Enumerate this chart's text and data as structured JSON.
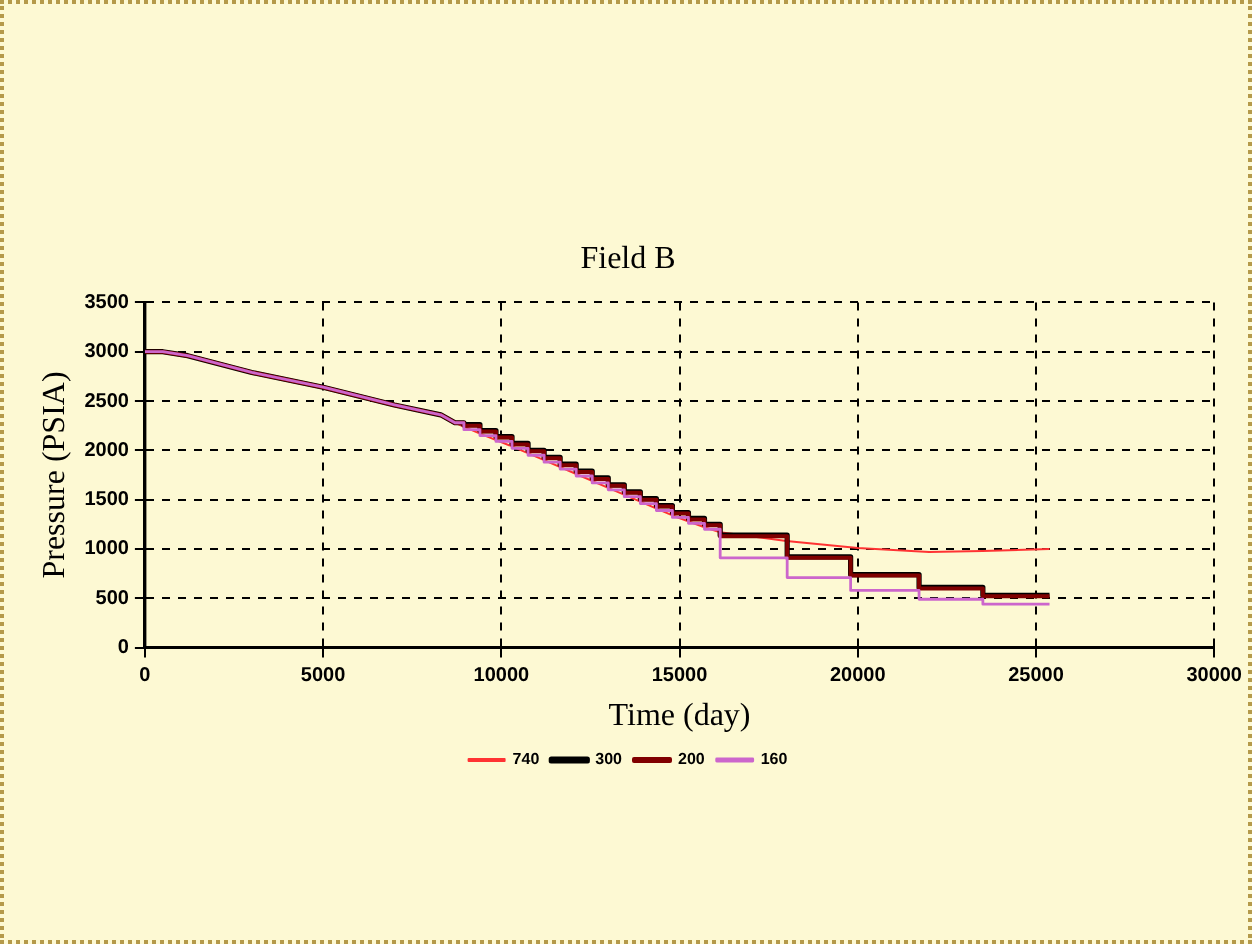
{
  "chart_data": {
    "type": "line",
    "title": "Field B",
    "xlabel": "Time (day)",
    "ylabel": "Pressure (PSIA)",
    "xlim": [
      0,
      30000
    ],
    "xticks": [
      0,
      5000,
      10000,
      15000,
      20000,
      25000,
      30000
    ],
    "ylim": [
      0,
      3500
    ],
    "yticks": [
      0,
      500,
      1000,
      1500,
      2000,
      2500,
      3000,
      3500
    ],
    "grid": true,
    "legend": "bottom",
    "marker": "none",
    "series": [
      {
        "name": "740",
        "color": "#ff3333",
        "x": [
          8700,
          9400,
          10300,
          11200,
          12100,
          13000,
          13900,
          14800,
          15700,
          16140,
          18000,
          20000,
          22000,
          23500,
          25380
        ],
        "values": [
          2280,
          2170,
          2040,
          1900,
          1760,
          1620,
          1480,
          1340,
          1220,
          1170,
          1080,
          1010,
          970,
          980,
          1000
        ]
      },
      {
        "name": "300",
        "color": "#000000",
        "x": [
          0,
          500,
          1200,
          3000,
          5000,
          7000,
          8300,
          8700,
          8950,
          8950,
          9400,
          9400,
          9850,
          9850,
          10300,
          10300,
          10750,
          10750,
          11200,
          11200,
          11650,
          11650,
          12100,
          12100,
          12550,
          12550,
          13000,
          13000,
          13450,
          13450,
          13900,
          13900,
          14350,
          14350,
          14800,
          14800,
          15250,
          15250,
          15700,
          15700,
          16140,
          16140,
          18020,
          18020,
          19800,
          19800,
          21720,
          21720,
          23510,
          23510,
          25380
        ],
        "values": [
          3000,
          3000,
          2960,
          2790,
          2640,
          2460,
          2360,
          2280,
          2280,
          2260,
          2260,
          2200,
          2200,
          2140,
          2140,
          2070,
          2070,
          2000,
          2000,
          1930,
          1930,
          1860,
          1860,
          1790,
          1790,
          1720,
          1720,
          1650,
          1650,
          1580,
          1580,
          1510,
          1510,
          1440,
          1440,
          1370,
          1370,
          1310,
          1310,
          1250,
          1250,
          1140,
          1140,
          920,
          920,
          740,
          740,
          610,
          610,
          530,
          530
        ]
      },
      {
        "name": "200",
        "color": "#800000",
        "x": [
          0,
          500,
          1200,
          3000,
          5000,
          7000,
          8300,
          8700,
          8950,
          8950,
          9400,
          9400,
          9850,
          9850,
          10300,
          10300,
          10750,
          10750,
          11200,
          11200,
          11650,
          11650,
          12100,
          12100,
          12550,
          12550,
          13000,
          13000,
          13450,
          13450,
          13900,
          13900,
          14350,
          14350,
          14800,
          14800,
          15250,
          15250,
          15700,
          15700,
          16140,
          16140,
          18020,
          18020,
          19800,
          19800,
          21720,
          21720,
          23510,
          23510,
          25380
        ],
        "values": [
          3000,
          3000,
          2960,
          2790,
          2640,
          2460,
          2360,
          2280,
          2280,
          2250,
          2250,
          2190,
          2190,
          2130,
          2130,
          2060,
          2060,
          1990,
          1990,
          1920,
          1920,
          1850,
          1850,
          1780,
          1780,
          1710,
          1710,
          1640,
          1640,
          1570,
          1570,
          1500,
          1500,
          1430,
          1430,
          1360,
          1360,
          1300,
          1300,
          1240,
          1240,
          1130,
          1130,
          910,
          910,
          730,
          730,
          600,
          600,
          520,
          520
        ]
      },
      {
        "name": "160",
        "color": "#cc66cc",
        "x": [
          0,
          500,
          1200,
          3000,
          5000,
          7000,
          8300,
          8700,
          8950,
          8950,
          9400,
          9400,
          9850,
          9850,
          10300,
          10300,
          10750,
          10750,
          11200,
          11200,
          11650,
          11650,
          12100,
          12100,
          12550,
          12550,
          13000,
          13000,
          13450,
          13450,
          13900,
          13900,
          14350,
          14350,
          14800,
          14800,
          15250,
          15250,
          15700,
          15700,
          16140,
          16140,
          18020,
          18020,
          19800,
          19800,
          21720,
          21720,
          23510,
          23510,
          25380
        ],
        "values": [
          3000,
          3000,
          2960,
          2790,
          2640,
          2460,
          2360,
          2280,
          2280,
          2210,
          2210,
          2150,
          2150,
          2090,
          2090,
          2020,
          2020,
          1950,
          1950,
          1880,
          1880,
          1810,
          1810,
          1740,
          1740,
          1670,
          1670,
          1600,
          1600,
          1530,
          1530,
          1460,
          1460,
          1390,
          1390,
          1320,
          1320,
          1260,
          1260,
          1200,
          1200,
          910,
          910,
          710,
          710,
          580,
          580,
          490,
          490,
          440,
          440
        ]
      }
    ]
  }
}
